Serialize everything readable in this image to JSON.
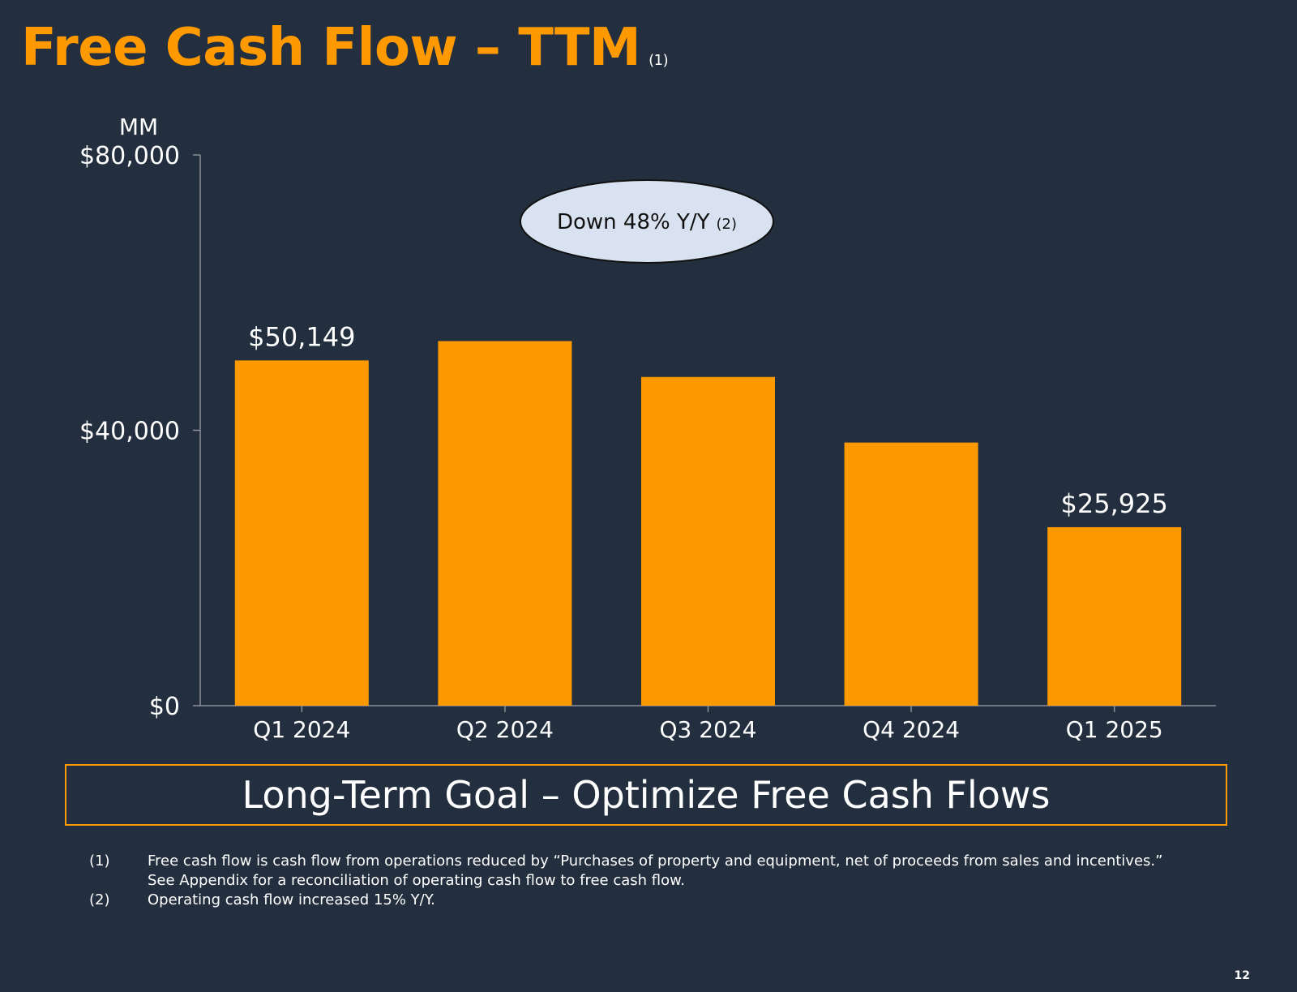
{
  "slide": {
    "title": "Free Cash Flow – TTM",
    "title_note": "(1)",
    "callout_text": "Down 48% Y/Y",
    "callout_note": "(2)",
    "goal_banner": "Long-Term Goal – Optimize Free Cash Flows",
    "footnotes": [
      {
        "num": "(1)",
        "text": "Free cash flow is cash flow from operations reduced by “Purchases of property and equipment, net of proceeds from sales and incentives.”",
        "text2": "See Appendix for a reconciliation of operating cash flow to free cash flow."
      },
      {
        "num": "(2)",
        "text": "Operating cash flow increased 15% Y/Y."
      }
    ],
    "page_number": "12"
  },
  "colors": {
    "background": "#232f3e",
    "bar": "#ff9900",
    "accent": "#ff9900",
    "callout_fill": "#d9e2f0",
    "axis": "#8a8f98"
  },
  "chart_data": {
    "type": "bar",
    "unit_label": "MM",
    "categories": [
      "Q1 2024",
      "Q2 2024",
      "Q3 2024",
      "Q4 2024",
      "Q1 2025"
    ],
    "values": [
      50149,
      52958,
      47747,
      38219,
      25925
    ],
    "data_labels": [
      "$50,149",
      null,
      null,
      null,
      "$25,925"
    ],
    "ylim": [
      0,
      80000
    ],
    "yticks": [
      0,
      40000,
      80000
    ],
    "ytick_labels": [
      "$0",
      "$40,000",
      "$80,000"
    ],
    "grid": false,
    "legend": "none"
  }
}
